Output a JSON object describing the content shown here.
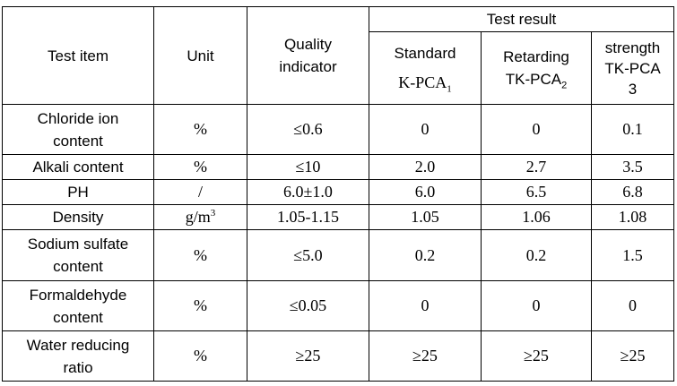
{
  "header": {
    "test_item": "Test item",
    "unit": "Unit",
    "quality_line1": "Quality",
    "quality_line2": "indicator",
    "test_result": "Test result",
    "col1_line1": "Standard",
    "col1_line2": "K-PCA",
    "col1_sub": "1",
    "col2_line1": "Retarding",
    "col2_line2": "TK-PCA",
    "col2_sub": "2",
    "col3_line1": "strength",
    "col3_line2": "TK-PCA",
    "col3_line3": "3"
  },
  "rows": [
    {
      "item_line1": "Chloride ion",
      "item_line2": "content",
      "unit": "%",
      "indicator": "≤0.6",
      "v1": "0",
      "v2": "0",
      "v3": "0.1"
    },
    {
      "item_line1": "Alkali content",
      "item_line2": "",
      "unit": "%",
      "indicator": "≤10",
      "v1": "2.0",
      "v2": "2.7",
      "v3": "3.5"
    },
    {
      "item_line1": "PH",
      "item_line2": "",
      "unit": "/",
      "indicator": "6.0±1.0",
      "v1": "6.0",
      "v2": "6.5",
      "v3": "6.8"
    },
    {
      "item_line1": "Density",
      "item_line2": "",
      "unit": "g/m",
      "unit_sup": "3",
      "indicator": "1.05-1.15",
      "v1": "1.05",
      "v2": "1.06",
      "v3": "1.08"
    },
    {
      "item_line1": "Sodium sulfate",
      "item_line2": "content",
      "unit": "%",
      "indicator": "≤5.0",
      "v1": "0.2",
      "v2": "0.2",
      "v3": "1.5"
    },
    {
      "item_line1": "Formaldehyde",
      "item_line2": "content",
      "unit": "%",
      "indicator": "≤0.05",
      "v1": "0",
      "v2": "0",
      "v3": "0"
    },
    {
      "item_line1": "Water reducing",
      "item_line2": "ratio",
      "unit": "%",
      "indicator": "≥25",
      "v1": "≥25",
      "v2": "≥25",
      "v3": "≥25"
    }
  ]
}
